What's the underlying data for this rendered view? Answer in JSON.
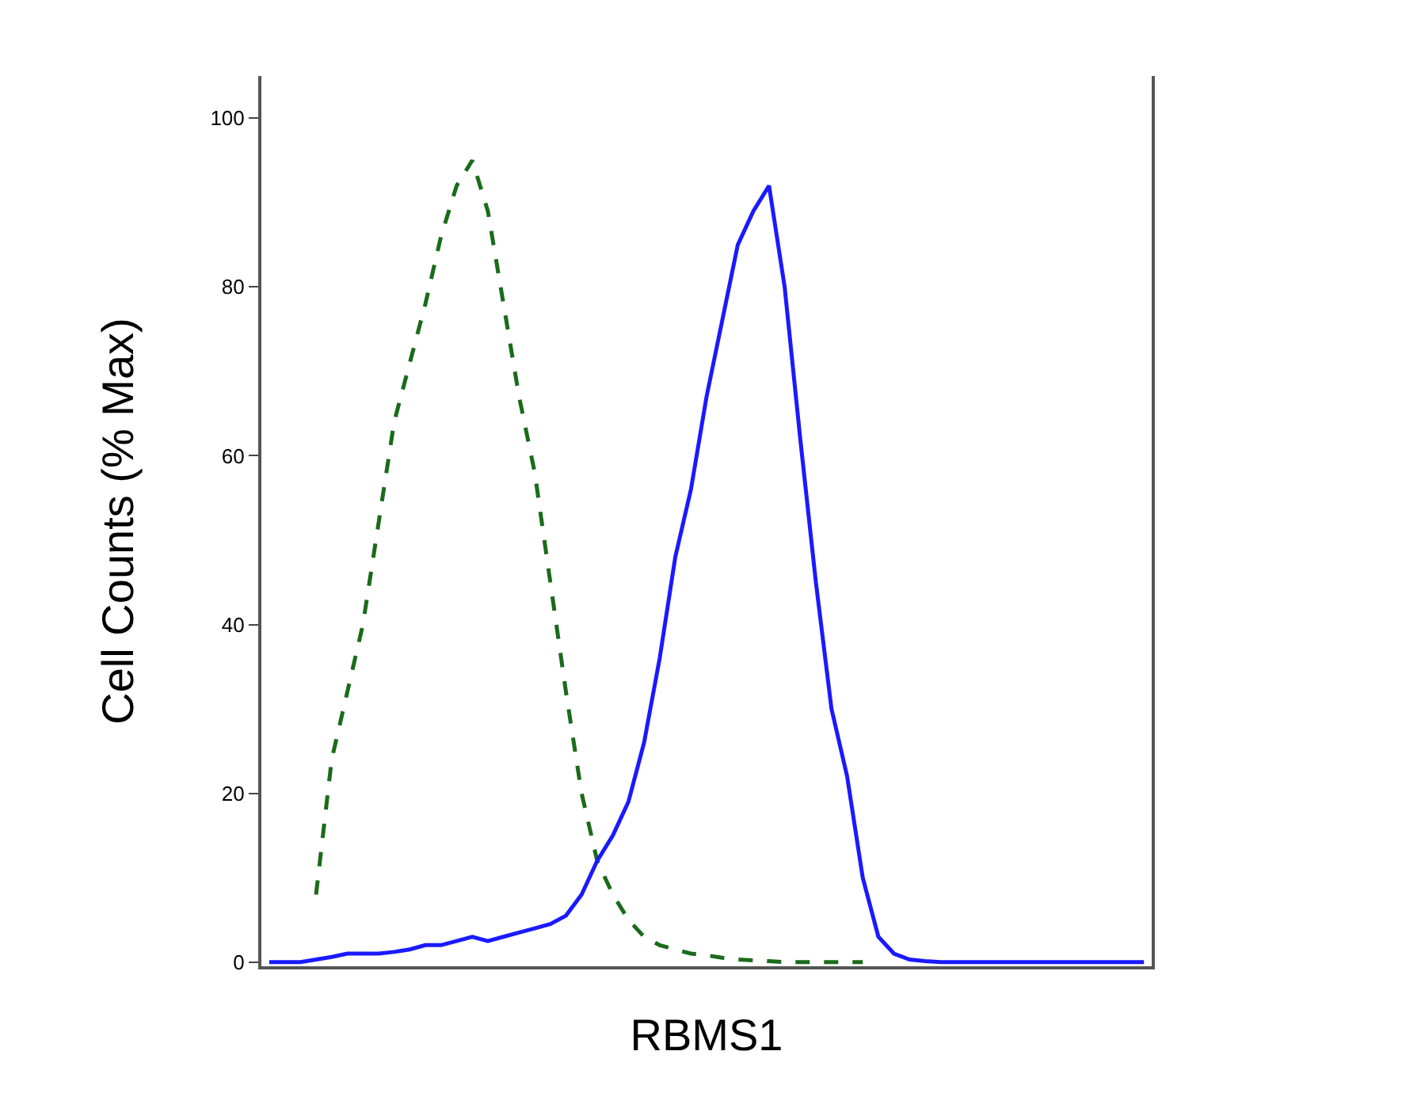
{
  "chart_data": {
    "type": "line",
    "xlabel": "RBMS1",
    "ylabel": "Cell Counts (% Max)",
    "categories": [
      null,
      null,
      null,
      null,
      null,
      null,
      null,
      null,
      null,
      null,
      null,
      null,
      null,
      null,
      null,
      null,
      null,
      null,
      null,
      null,
      null,
      null,
      null,
      null,
      null,
      null,
      null,
      null,
      null,
      null,
      null,
      null,
      null,
      null,
      null,
      null,
      null,
      null,
      null,
      null,
      null,
      null,
      null,
      null,
      null,
      null,
      null,
      null,
      null,
      null,
      null,
      null,
      null,
      null,
      null,
      null,
      null
    ],
    "series": [
      {
        "color": "#1a6b1a",
        "line_style": "dashed",
        "values": [
          null,
          null,
          null,
          8,
          24,
          32,
          40,
          52,
          64,
          71,
          78,
          86,
          92,
          95,
          89,
          78,
          67,
          58,
          45,
          32,
          20,
          12,
          8,
          5,
          3,
          2,
          1.5,
          1,
          0.8,
          0.5,
          0.3,
          0.2,
          0.1,
          0,
          0,
          0,
          0,
          0,
          0,
          null,
          null,
          null,
          null,
          null,
          null,
          null,
          null,
          null,
          null,
          null,
          null,
          null,
          null,
          null,
          null,
          null,
          null
        ]
      },
      {
        "color": "#1a1aff",
        "line_style": "solid",
        "values": [
          0,
          0,
          0,
          0.3,
          0.6,
          1,
          1,
          1,
          1.2,
          1.5,
          2,
          2,
          2.5,
          3,
          2.5,
          3,
          3.5,
          4,
          4.5,
          5.5,
          8,
          12,
          15,
          19,
          26,
          36,
          48,
          56,
          67,
          76,
          85,
          89,
          92,
          80,
          62,
          45,
          30,
          22,
          10,
          3,
          1,
          0.3,
          0.1,
          0,
          0,
          0,
          0,
          0,
          0,
          0,
          0,
          0,
          0,
          0,
          0,
          0,
          0
        ]
      }
    ],
    "ylim": [
      -0.5,
      105
    ],
    "yticks": [
      0,
      20,
      40,
      60,
      80,
      100
    ]
  }
}
